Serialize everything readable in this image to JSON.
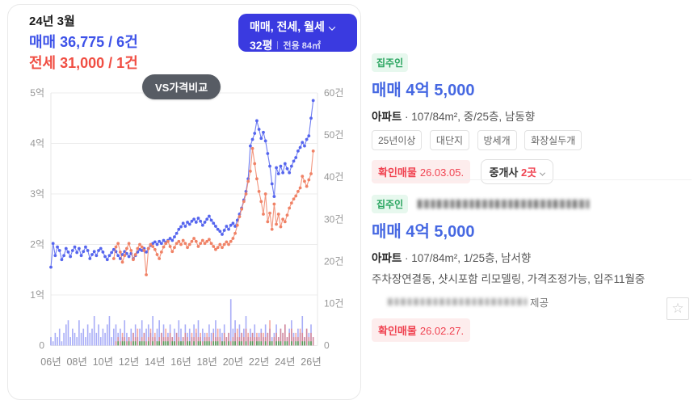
{
  "summary": {
    "date": "24년 3월",
    "sale": "매매 36,775 / 6건",
    "jeonse": "전세 31,000 / 1건"
  },
  "filter_button": {
    "line1": "매매, 전세, 월세",
    "area": "32평",
    "exclusive": "전용 84㎡"
  },
  "vs_button_label": "VS가격비교",
  "chart_data": {
    "type": "line+bar",
    "x_labels": [
      "06년",
      "08년",
      "10년",
      "12년",
      "14년",
      "16년",
      "18년",
      "20년",
      "22년",
      "24년",
      "26년"
    ],
    "x_range": [
      2006,
      2026.5
    ],
    "left_axis": {
      "labels": [
        "5억",
        "4억",
        "3억",
        "2억",
        "1억",
        "0"
      ],
      "ticks": [
        5,
        4,
        3,
        2,
        1,
        0
      ],
      "range": [
        0,
        5
      ]
    },
    "right_axis": {
      "labels": [
        "60건",
        "50건",
        "40건",
        "30건",
        "20건",
        "10건",
        "0"
      ],
      "ticks": [
        60,
        50,
        40,
        30,
        20,
        10,
        0
      ],
      "range": [
        0,
        60
      ]
    },
    "series": [
      {
        "name": "매매 가격",
        "type": "line",
        "axis": "price",
        "color": "#5565ee",
        "start": 2006.0,
        "step": 0.16667,
        "values": [
          1.55,
          2.02,
          1.78,
          1.95,
          1.88,
          1.7,
          1.78,
          1.92,
          1.85,
          1.76,
          1.88,
          1.95,
          1.84,
          1.92,
          1.78,
          1.86,
          1.95,
          1.88,
          1.72,
          1.8,
          1.86,
          1.78,
          1.88,
          1.92,
          1.85,
          1.76,
          1.7,
          1.78,
          1.84,
          1.9,
          1.86,
          1.78,
          1.72,
          1.8,
          1.86,
          1.82,
          1.76,
          1.82,
          1.72,
          1.78,
          1.85,
          1.9,
          1.88,
          1.92,
          1.85,
          1.92,
          1.98,
          2.02,
          2.05,
          2.0,
          2.06,
          2.02,
          2.08,
          2.04,
          2.08,
          2.12,
          2.08,
          2.15,
          2.22,
          2.3,
          2.35,
          2.42,
          2.36,
          2.44,
          2.4,
          2.46,
          2.5,
          2.44,
          2.52,
          2.46,
          2.38,
          2.44,
          2.5,
          2.56,
          2.48,
          2.42,
          2.36,
          2.3,
          2.26,
          2.2,
          2.28,
          2.36,
          2.3,
          2.38,
          2.42,
          2.36,
          2.48,
          2.6,
          2.72,
          2.88,
          3.05,
          3.3,
          3.95,
          4.08,
          4.2,
          4.45,
          4.28,
          4.1,
          4.22,
          4.05,
          3.8,
          3.55,
          3.2,
          2.95,
          3.52,
          3.4,
          3.55,
          3.42,
          3.6,
          3.5,
          3.42,
          3.55,
          3.65,
          3.72,
          3.85,
          3.92,
          4.02,
          3.95,
          4.08,
          4.15,
          4.5,
          4.85
        ]
      },
      {
        "name": "전세 가격",
        "type": "line",
        "axis": "price",
        "color": "#f08266",
        "start": 2010.8333,
        "step": 0.16667,
        "values": [
          1.72,
          1.95,
          2.02,
          1.85,
          1.65,
          1.78,
          1.92,
          2.02,
          1.88,
          1.7,
          1.8,
          1.92,
          2.0,
          1.95,
          1.88,
          1.4,
          1.92,
          2.0,
          1.96,
          1.9,
          1.8,
          1.72,
          1.85,
          1.95,
          2.02,
          2.06,
          1.96,
          1.86,
          1.94,
          2.02,
          2.06,
          2.0,
          2.08,
          2.02,
          1.94,
          2.0,
          2.06,
          2.12,
          2.06,
          1.96,
          2.02,
          2.08,
          2.02,
          2.06,
          2.1,
          2.02,
          1.96,
          1.9,
          1.94,
          2.0,
          1.94,
          2.0,
          2.05,
          2.0,
          2.06,
          2.12,
          2.22,
          2.38,
          2.55,
          2.7,
          2.85,
          3.0,
          3.25,
          3.45,
          3.9,
          3.6,
          3.3,
          3.05,
          2.85,
          2.6,
          3.0,
          2.45,
          2.62,
          2.3,
          2.8,
          2.4,
          2.6,
          2.35,
          2.5,
          2.45,
          2.58,
          2.72,
          2.82,
          2.9,
          2.96,
          3.05,
          3.12,
          3.35,
          3.25,
          3.15,
          3.28,
          3.4,
          3.85
        ]
      },
      {
        "name": "매매 거래량",
        "type": "bar",
        "axis": "count",
        "color": "rgba(97,106,240,0.55)",
        "start": 2006.0,
        "step": 0.16667,
        "values": [
          2,
          1,
          3,
          2,
          4,
          1,
          3,
          5,
          6,
          2,
          4,
          3,
          2,
          6,
          3,
          4,
          2,
          5,
          3,
          4,
          7,
          3,
          5,
          2,
          4,
          3,
          5,
          7,
          2,
          4,
          5,
          3,
          4,
          2,
          6,
          3,
          2,
          4,
          3,
          5,
          2,
          4,
          6,
          3,
          4,
          5,
          3,
          7,
          2,
          4,
          6,
          3,
          5,
          2,
          3,
          5,
          2,
          4,
          3,
          6,
          4,
          2,
          5,
          3,
          4,
          2,
          5,
          3,
          6,
          2,
          4,
          3,
          2,
          5,
          3,
          4,
          6,
          2,
          4,
          3,
          5,
          2,
          3,
          11,
          4,
          6,
          2,
          5,
          3,
          4,
          7,
          2,
          4,
          3,
          5,
          2,
          3,
          4,
          2,
          5,
          3,
          4,
          2,
          3,
          5,
          2,
          4,
          3,
          5,
          2,
          4,
          6,
          3,
          2,
          4,
          3,
          7,
          2,
          4,
          3,
          5,
          2
        ]
      },
      {
        "name": "전세 거래량",
        "type": "bar",
        "axis": "count",
        "color": "rgba(238,112,95,0.6)",
        "start": 2011.0,
        "step": 0.16667,
        "values": [
          1,
          2,
          1,
          3,
          2,
          1,
          2,
          1,
          3,
          2,
          4,
          1,
          2,
          3,
          1,
          2,
          4,
          2,
          3,
          1,
          2,
          3,
          2,
          4,
          2,
          3,
          2,
          1,
          3,
          2,
          1,
          2,
          3,
          2,
          1,
          3,
          2,
          4,
          2,
          3,
          1,
          2,
          3,
          2,
          1,
          3,
          2,
          4,
          2,
          1,
          3,
          2,
          3,
          1,
          2,
          3,
          4,
          2,
          3,
          2,
          4,
          3,
          2,
          3,
          2,
          3,
          2,
          3,
          3,
          2,
          3,
          6,
          1,
          2,
          3,
          2,
          4,
          3,
          5,
          2,
          3,
          4,
          2,
          3,
          2,
          4,
          3,
          2,
          4,
          2,
          3,
          2
        ]
      },
      {
        "name": "월세 거래량",
        "type": "bar",
        "axis": "count",
        "color": "rgba(62,160,74,0.85)",
        "start": 2011.0,
        "step": 0.16667,
        "values": [
          0,
          1,
          0,
          1,
          1,
          0,
          1,
          0,
          1,
          1,
          0,
          1,
          1,
          1,
          0,
          1,
          0,
          1,
          0,
          1,
          1,
          0,
          1,
          1,
          1,
          0,
          1,
          1,
          0,
          1,
          1,
          1,
          0,
          1,
          1,
          0,
          1,
          0,
          1,
          1,
          0,
          1,
          1,
          1,
          0,
          1,
          1,
          1,
          0,
          1,
          1,
          0,
          1,
          0,
          1,
          1,
          0,
          1,
          1,
          0,
          1,
          0,
          1,
          1,
          0,
          1,
          1,
          1,
          0,
          1,
          0,
          1,
          1,
          0,
          1,
          1,
          1,
          0,
          1,
          1,
          0,
          1,
          0,
          1,
          1,
          0,
          1,
          1,
          0,
          1,
          1,
          0
        ]
      }
    ]
  },
  "listings": [
    {
      "badge": "집주인",
      "price": "매매 4억 5,000",
      "spec_type": "아파트",
      "spec_rest": " · 107/84m², 중/25층, 남동향",
      "tags": [
        "25년이상",
        "대단지",
        "방세개",
        "화장실두개"
      ],
      "confirm_label": "확인매물",
      "confirm_date": "26.03.05.",
      "broker_label": "중개사",
      "broker_count": "2곳"
    },
    {
      "badge": "집주인",
      "price": "매매 4억 5,000",
      "spec_type": "아파트",
      "spec_rest": " · 107/84m², 1/25층, 남서향",
      "desc": "주차장연결동, 샷시포함 리모델링, 가격조정가능, 입주11월중",
      "provider_suffix": "제공",
      "confirm_label": "확인매물",
      "confirm_date": "26.02.27.",
      "star_icon": "☆"
    }
  ]
}
